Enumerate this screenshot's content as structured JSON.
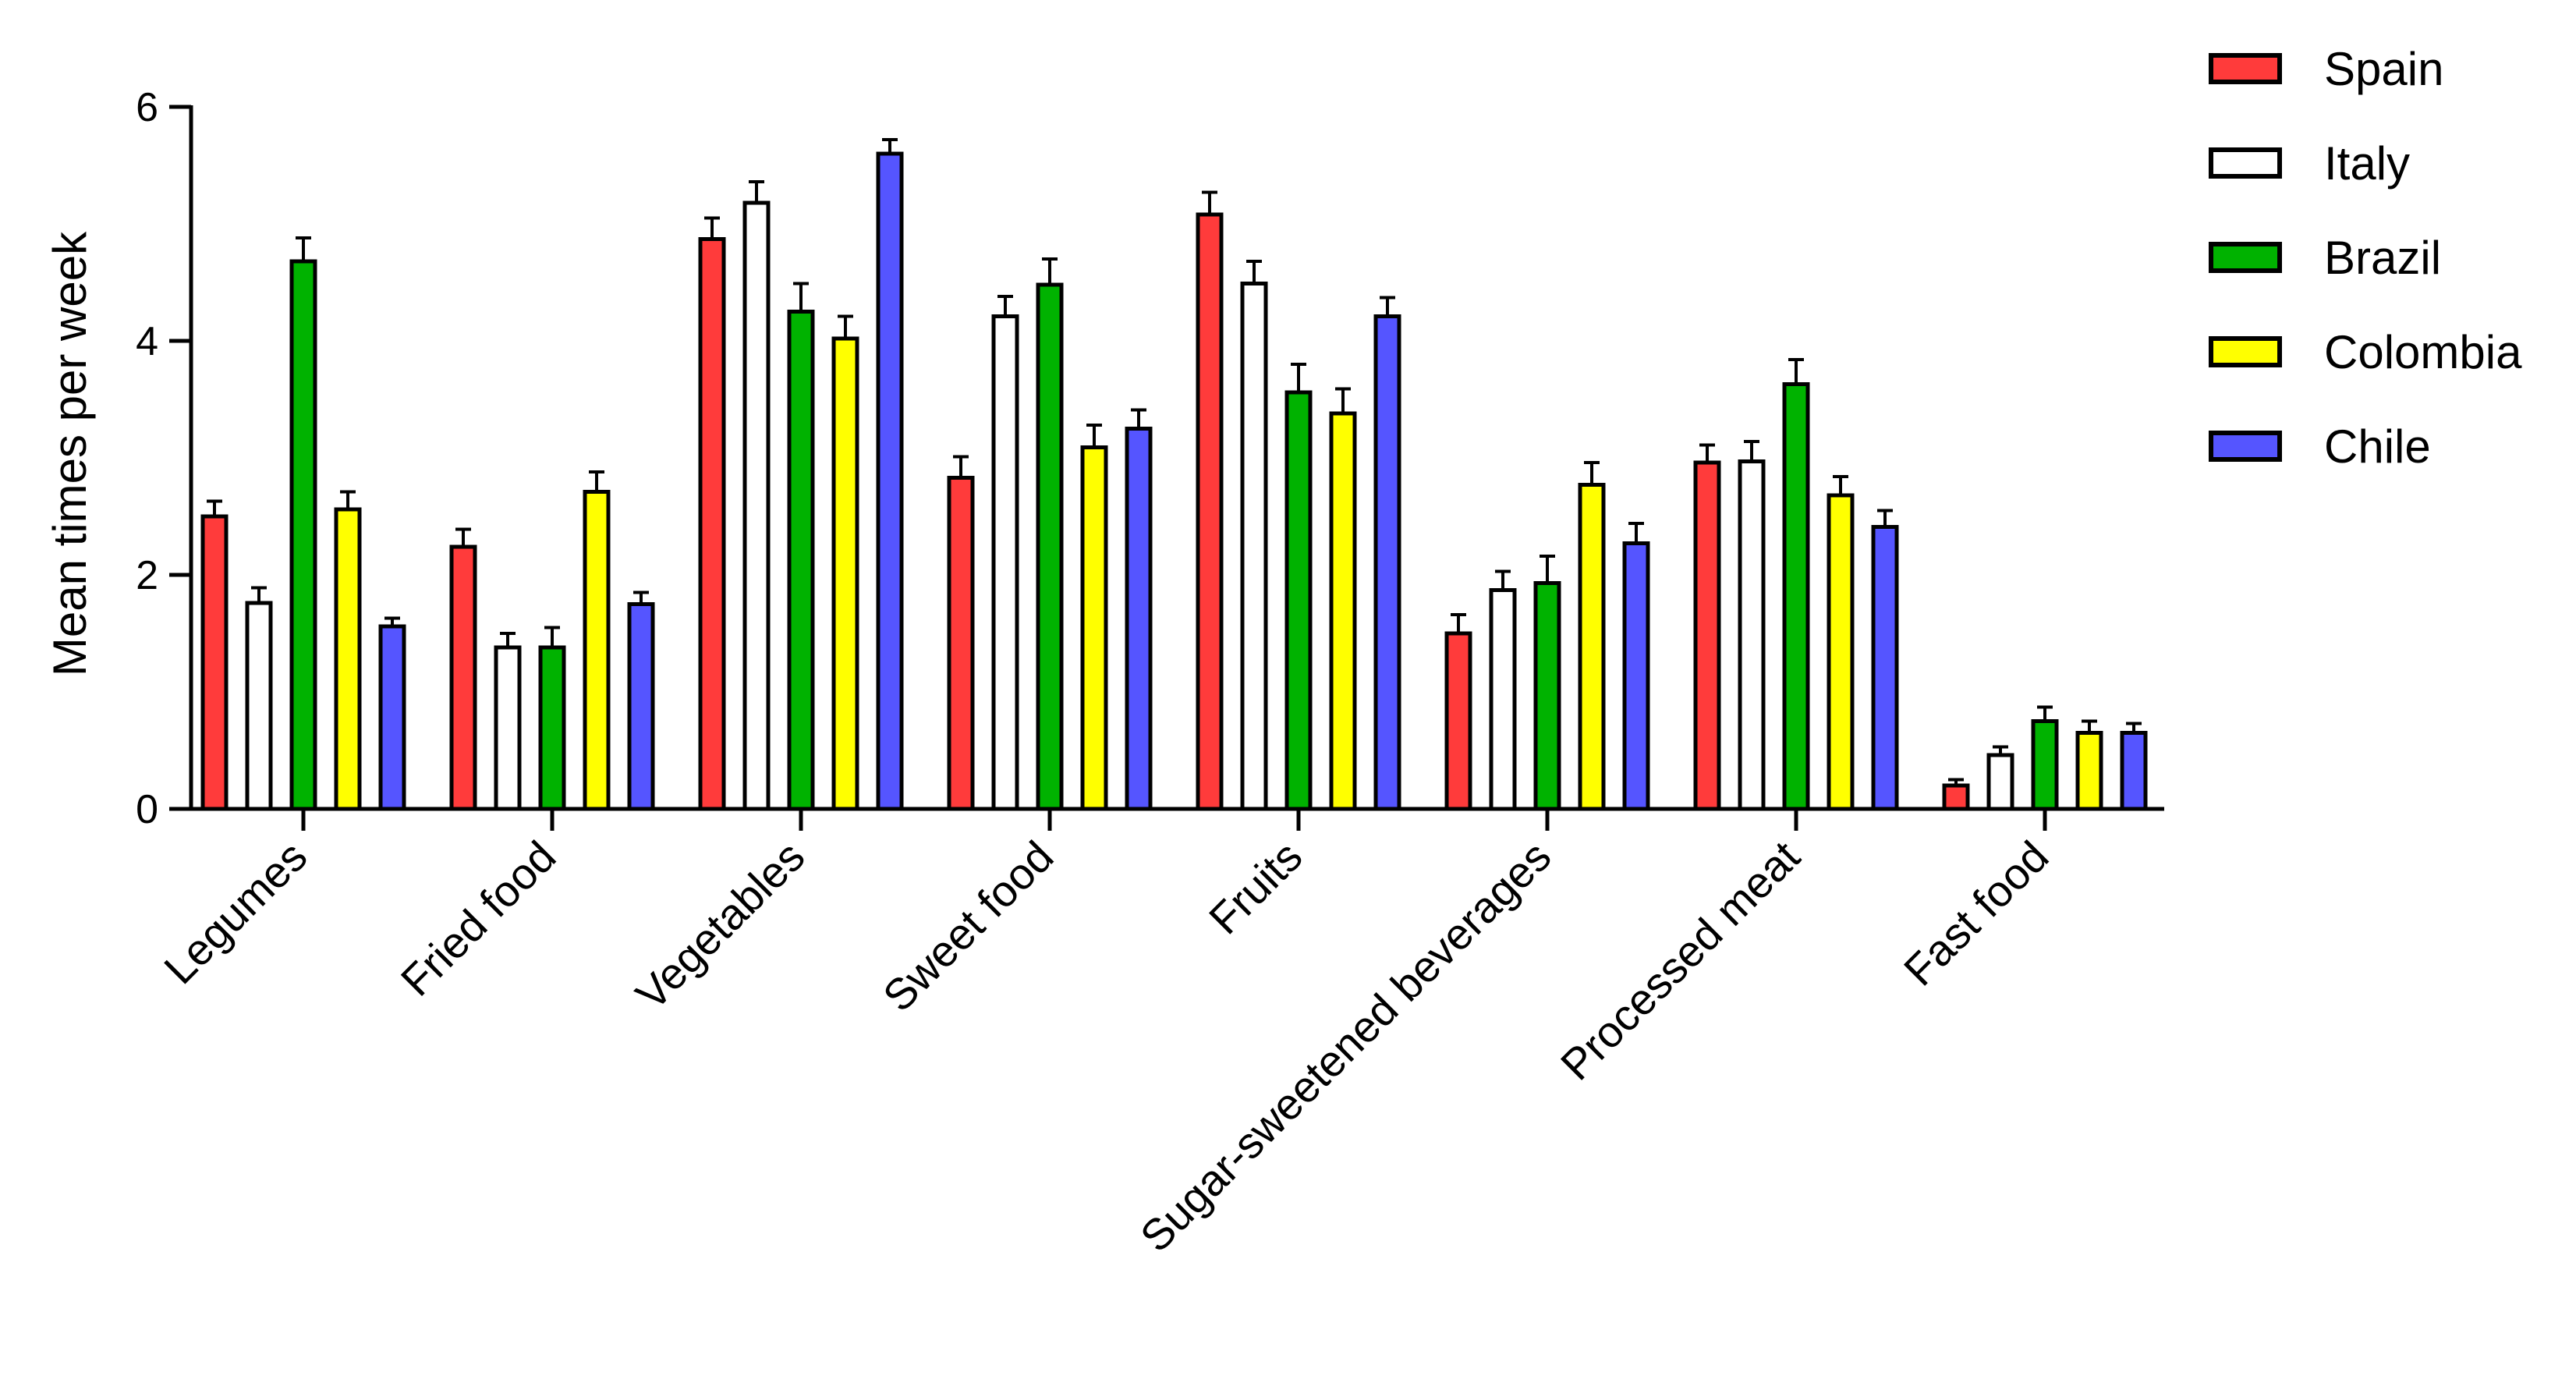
{
  "chart_data": {
    "type": "bar",
    "ylabel": "Mean times per week",
    "xlabel": "",
    "ylim": [
      0,
      6
    ],
    "yticks": [
      0,
      2,
      4,
      6
    ],
    "grid": false,
    "legend_position": "top-right",
    "categories": [
      "Legumes",
      "Fried food",
      "Vegetables",
      "Sweet food",
      "Fruits",
      "Sugar-sweetened beverages",
      "Processed meat",
      "Fast food"
    ],
    "series": [
      {
        "name": "Spain",
        "color": "#ff3b3b",
        "values": [
          2.5,
          2.24,
          4.87,
          2.83,
          5.08,
          1.5,
          2.96,
          0.2
        ],
        "errors": [
          0.13,
          0.15,
          0.18,
          0.18,
          0.19,
          0.16,
          0.15,
          0.05
        ]
      },
      {
        "name": "Italy",
        "color": "#ffffff",
        "values": [
          1.76,
          1.38,
          5.18,
          4.21,
          4.49,
          1.87,
          2.97,
          0.46
        ],
        "errors": [
          0.13,
          0.12,
          0.18,
          0.17,
          0.19,
          0.16,
          0.17,
          0.07
        ]
      },
      {
        "name": "Brazil",
        "color": "#00b200",
        "values": [
          4.68,
          1.38,
          4.25,
          4.48,
          3.56,
          1.93,
          3.63,
          0.75
        ],
        "errors": [
          0.2,
          0.17,
          0.24,
          0.22,
          0.24,
          0.23,
          0.21,
          0.12
        ]
      },
      {
        "name": "Colombia",
        "color": "#ffff00",
        "values": [
          2.56,
          2.71,
          4.02,
          3.09,
          3.38,
          2.77,
          2.68,
          0.65
        ],
        "errors": [
          0.15,
          0.17,
          0.19,
          0.19,
          0.21,
          0.19,
          0.16,
          0.1
        ]
      },
      {
        "name": "Chile",
        "color": "#5555ff",
        "values": [
          1.56,
          1.75,
          5.6,
          3.25,
          4.21,
          2.27,
          2.41,
          0.65
        ],
        "errors": [
          0.07,
          0.1,
          0.12,
          0.16,
          0.16,
          0.17,
          0.14,
          0.08
        ]
      }
    ]
  }
}
